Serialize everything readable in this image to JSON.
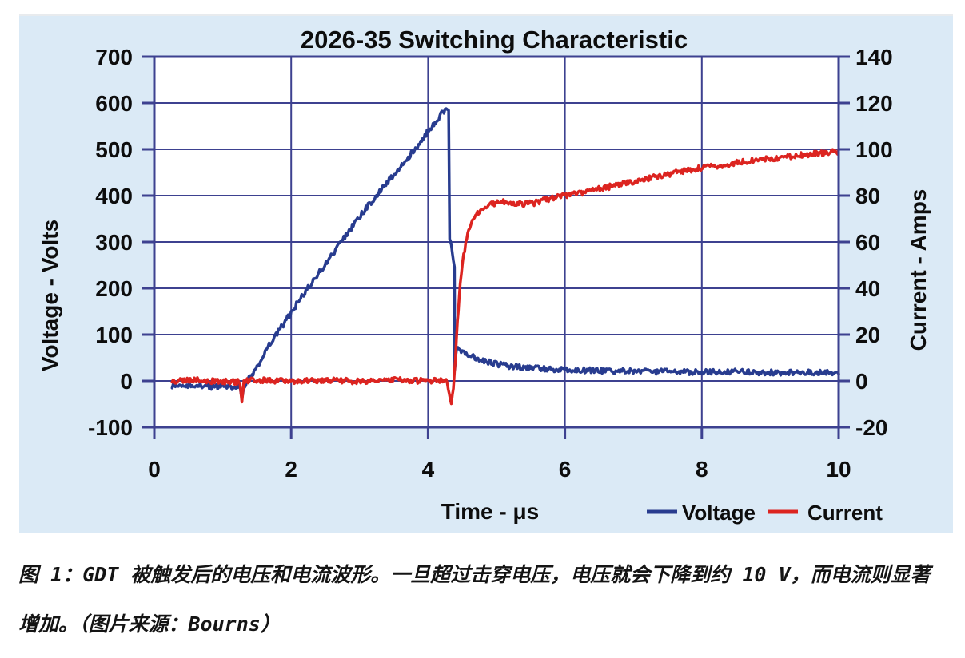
{
  "figure": {
    "caption_line1": "图 1：GDT 被触发后的电压和电流波形。一旦超过击穿电压，电压就会下降到约 10 V，而电流则显著",
    "caption_line2": "增加。（图片来源：Bourns）"
  },
  "colors": {
    "card_background": "#dbeaf6",
    "plot_background": "#ffffff",
    "grid": "#3d4190",
    "text": "#0d0d0d",
    "voltage": "#283c8f",
    "current": "#dc2420"
  },
  "chart_data": {
    "type": "line",
    "title": "2026-35 Switching Characteristic",
    "xlabel": "Time - μs",
    "ylabel_left": "Voltage - Volts",
    "ylabel_right": "Current - Amps",
    "xlim": [
      0,
      10
    ],
    "ylim_left": [
      -100,
      700
    ],
    "ylim_right": [
      -20,
      140
    ],
    "x_ticks": [
      0,
      2,
      4,
      6,
      8,
      10
    ],
    "y_ticks_left": [
      700,
      600,
      500,
      400,
      300,
      200,
      100,
      0,
      -100
    ],
    "y_ticks_right": [
      140,
      120,
      100,
      80,
      60,
      40,
      20,
      0,
      -20
    ],
    "grid": true,
    "legend_position": "bottom-right",
    "legend": [
      "Voltage",
      "Current"
    ],
    "series": [
      {
        "name": "Voltage",
        "axis": "left",
        "color": "#283c8f",
        "noise": 6,
        "points": [
          [
            0.26,
            -12
          ],
          [
            0.4,
            -8
          ],
          [
            0.55,
            -14
          ],
          [
            0.7,
            -9
          ],
          [
            0.85,
            -13
          ],
          [
            1.0,
            -10
          ],
          [
            1.15,
            -14
          ],
          [
            1.25,
            -10
          ],
          [
            1.28,
            -32
          ],
          [
            1.32,
            -8
          ],
          [
            1.4,
            8
          ],
          [
            1.5,
            30
          ],
          [
            1.62,
            62
          ],
          [
            1.75,
            95
          ],
          [
            1.9,
            125
          ],
          [
            2.0,
            148
          ],
          [
            2.2,
            192
          ],
          [
            2.4,
            232
          ],
          [
            2.6,
            272
          ],
          [
            2.8,
            315
          ],
          [
            3.0,
            355
          ],
          [
            3.2,
            392
          ],
          [
            3.4,
            428
          ],
          [
            3.6,
            462
          ],
          [
            3.8,
            500
          ],
          [
            4.0,
            540
          ],
          [
            4.1,
            558
          ],
          [
            4.2,
            578
          ],
          [
            4.28,
            590
          ],
          [
            4.3,
            585
          ],
          [
            4.315,
            310
          ],
          [
            4.34,
            290
          ],
          [
            4.37,
            262
          ],
          [
            4.385,
            250
          ],
          [
            4.39,
            30
          ],
          [
            4.42,
            75
          ],
          [
            4.5,
            65
          ],
          [
            4.6,
            55
          ],
          [
            4.7,
            50
          ],
          [
            4.85,
            42
          ],
          [
            5.0,
            37
          ],
          [
            5.2,
            32
          ],
          [
            5.5,
            28
          ],
          [
            5.8,
            26
          ],
          [
            6.1,
            24
          ],
          [
            6.5,
            22
          ],
          [
            7.0,
            21
          ],
          [
            7.5,
            20
          ],
          [
            8.0,
            19
          ],
          [
            8.5,
            20
          ],
          [
            9.0,
            18
          ],
          [
            9.5,
            19
          ],
          [
            10.0,
            18
          ]
        ]
      },
      {
        "name": "Current",
        "axis": "right",
        "color": "#dc2420",
        "noise": 1.2,
        "points": [
          [
            0.26,
            0
          ],
          [
            0.6,
            0.3
          ],
          [
            1.0,
            -0.3
          ],
          [
            1.25,
            -0.5
          ],
          [
            1.28,
            -8
          ],
          [
            1.31,
            0
          ],
          [
            1.6,
            0.3
          ],
          [
            2.0,
            0
          ],
          [
            2.5,
            0.4
          ],
          [
            3.0,
            -0.3
          ],
          [
            3.5,
            0.3
          ],
          [
            4.0,
            0
          ],
          [
            4.2,
            0.3
          ],
          [
            4.28,
            0
          ],
          [
            4.31,
            -5
          ],
          [
            4.34,
            -10
          ],
          [
            4.37,
            -3
          ],
          [
            4.4,
            10
          ],
          [
            4.43,
            25
          ],
          [
            4.47,
            42
          ],
          [
            4.52,
            55
          ],
          [
            4.58,
            63
          ],
          [
            4.65,
            69
          ],
          [
            4.75,
            73.5
          ],
          [
            4.85,
            75.5
          ],
          [
            5.0,
            77
          ],
          [
            5.1,
            77.5
          ],
          [
            5.25,
            77
          ],
          [
            5.4,
            76.5
          ],
          [
            5.55,
            76.8
          ],
          [
            5.7,
            78
          ],
          [
            5.85,
            79
          ],
          [
            6.0,
            80
          ],
          [
            6.3,
            81.5
          ],
          [
            6.6,
            83.5
          ],
          [
            7.0,
            86
          ],
          [
            7.4,
            88.5
          ],
          [
            7.8,
            91
          ],
          [
            8.0,
            92
          ],
          [
            8.3,
            93.2
          ],
          [
            8.6,
            94.5
          ],
          [
            9.0,
            96
          ],
          [
            9.3,
            97
          ],
          [
            9.6,
            98
          ],
          [
            10.0,
            99
          ]
        ]
      }
    ]
  }
}
